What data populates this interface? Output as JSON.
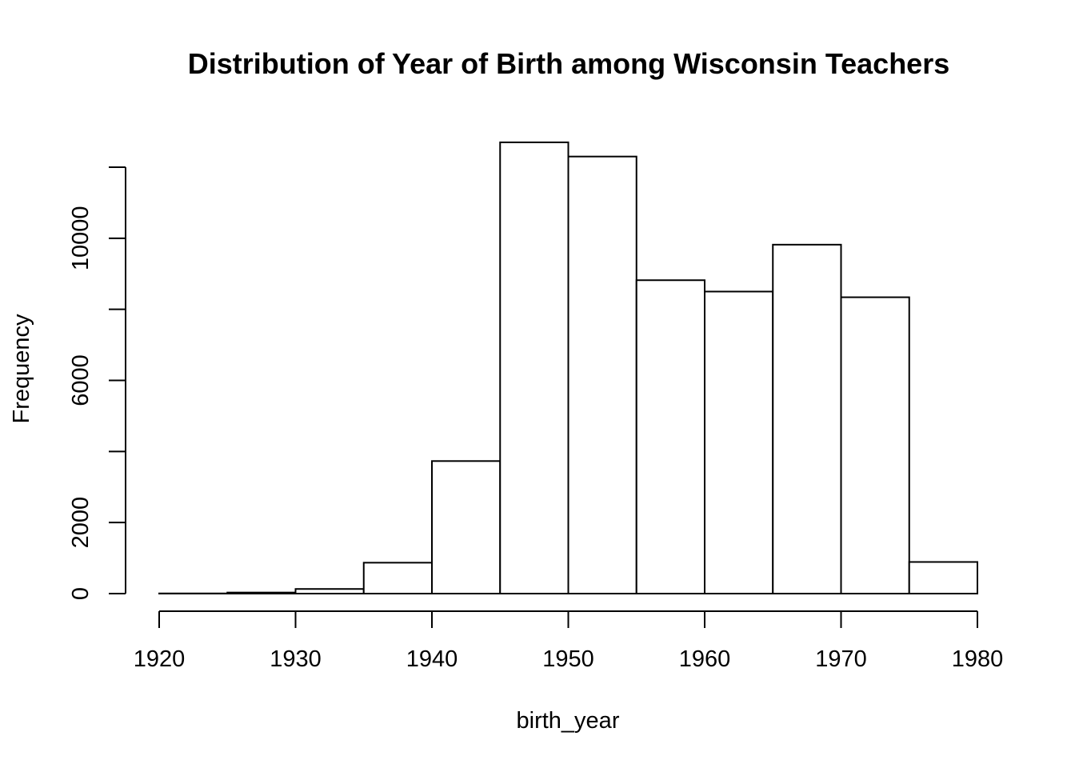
{
  "chart_data": {
    "type": "bar",
    "title": "Distribution of Year of Birth among Wisconsin Teachers",
    "xlabel": "birth_year",
    "ylabel": "Frequency",
    "bins": [
      {
        "from": 1920,
        "to": 1925,
        "value": 5
      },
      {
        "from": 1925,
        "to": 1930,
        "value": 30
      },
      {
        "from": 1930,
        "to": 1935,
        "value": 130
      },
      {
        "from": 1935,
        "to": 1940,
        "value": 870
      },
      {
        "from": 1940,
        "to": 1945,
        "value": 3730
      },
      {
        "from": 1945,
        "to": 1950,
        "value": 12700
      },
      {
        "from": 1950,
        "to": 1955,
        "value": 12300
      },
      {
        "from": 1955,
        "to": 1960,
        "value": 8820
      },
      {
        "from": 1960,
        "to": 1965,
        "value": 8500
      },
      {
        "from": 1965,
        "to": 1970,
        "value": 9820
      },
      {
        "from": 1970,
        "to": 1975,
        "value": 8340
      },
      {
        "from": 1975,
        "to": 1980,
        "value": 890
      }
    ],
    "xlim": [
      1920,
      1980
    ],
    "ylim": [
      0,
      12000
    ],
    "x_ticks": [
      1920,
      1930,
      1940,
      1950,
      1960,
      1970,
      1980
    ],
    "y_ticks": [
      0,
      2000,
      4000,
      6000,
      8000,
      10000,
      12000
    ],
    "y_tick_labels": [
      "0",
      "2000",
      "",
      "6000",
      "",
      "10000",
      ""
    ],
    "grid": false
  }
}
